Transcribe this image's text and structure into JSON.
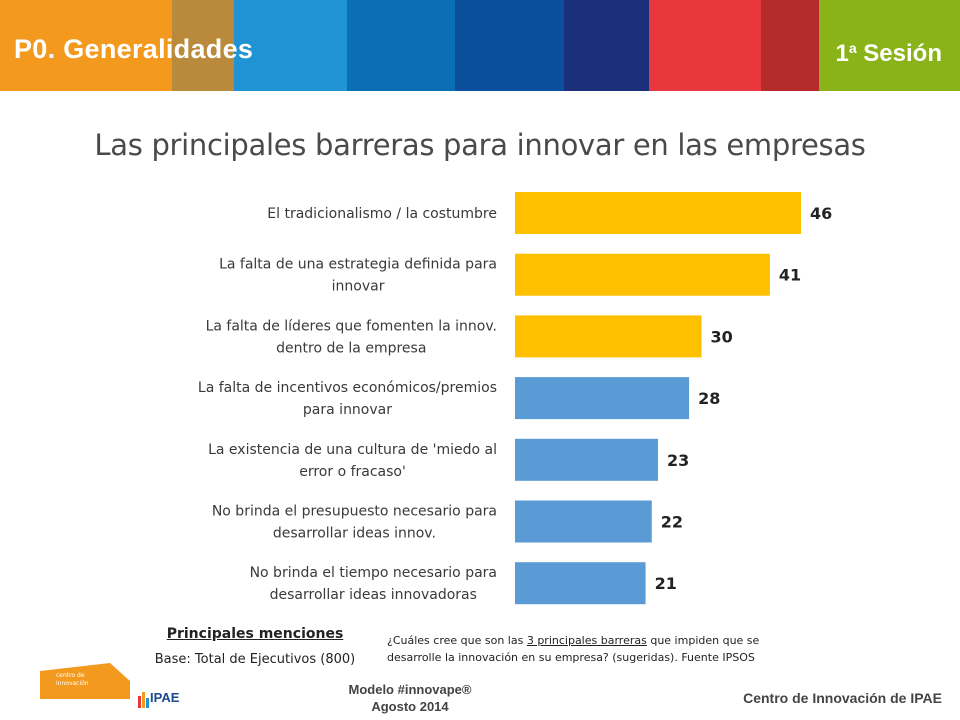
{
  "header": {
    "title": "P0. Generalidades",
    "session_number": "1",
    "session_sup": "a",
    "session_word": "Sesión",
    "stripe_colors": [
      "#f39a1e",
      "#b98a3c",
      "#1f93d3",
      "#0a6fb5",
      "#0b4f9c",
      "#1b2f7a",
      "#e8373d",
      "#b52a2a",
      "#8ab31a"
    ]
  },
  "chart_data": {
    "type": "bar",
    "orientation": "horizontal",
    "title": "Las principales barreras para innovar en las empresas",
    "categories": [
      [
        "El tradicionalismo / la costumbre"
      ],
      [
        "La falta de una estrategia definida para",
        "innovar"
      ],
      [
        "La falta de líderes que fomenten la innov.",
        "dentro de la empresa"
      ],
      [
        "La falta de incentivos económicos/premios",
        "para innovar"
      ],
      [
        "La existencia de una cultura de 'miedo al",
        "error o fracaso'"
      ],
      [
        "No brinda el presupuesto necesario para",
        "desarrollar ideas innov."
      ],
      [
        "No brinda el tiempo necesario para",
        "desarrollar ideas innovadoras"
      ]
    ],
    "values": [
      46,
      41,
      30,
      28,
      23,
      22,
      21
    ],
    "colors": [
      "#ffc000",
      "#ffc000",
      "#ffc000",
      "#5b9bd5",
      "#5b9bd5",
      "#5b9bd5",
      "#5b9bd5"
    ],
    "xlim": [
      0,
      46
    ],
    "grid": false,
    "legend": "none"
  },
  "notes": {
    "title": "Principales menciones",
    "base": "Base: Total de Ejecutivos (800)",
    "question_pre": "¿Cuáles cree que son las ",
    "question_underlined": "3 principales barreras",
    "question_post": " que impiden que se desarrolle la innovación en su empresa? (sugeridas). Fuente IPSOS"
  },
  "logos": {
    "centro_line1": "centro de",
    "centro_line2": "innovación",
    "centro_color": "#f39a1e",
    "ipae": "IPAE"
  },
  "footer": {
    "model": "Modelo #innovape®",
    "date": "Agosto 2014",
    "right": "Centro de Innovación de IPAE"
  }
}
